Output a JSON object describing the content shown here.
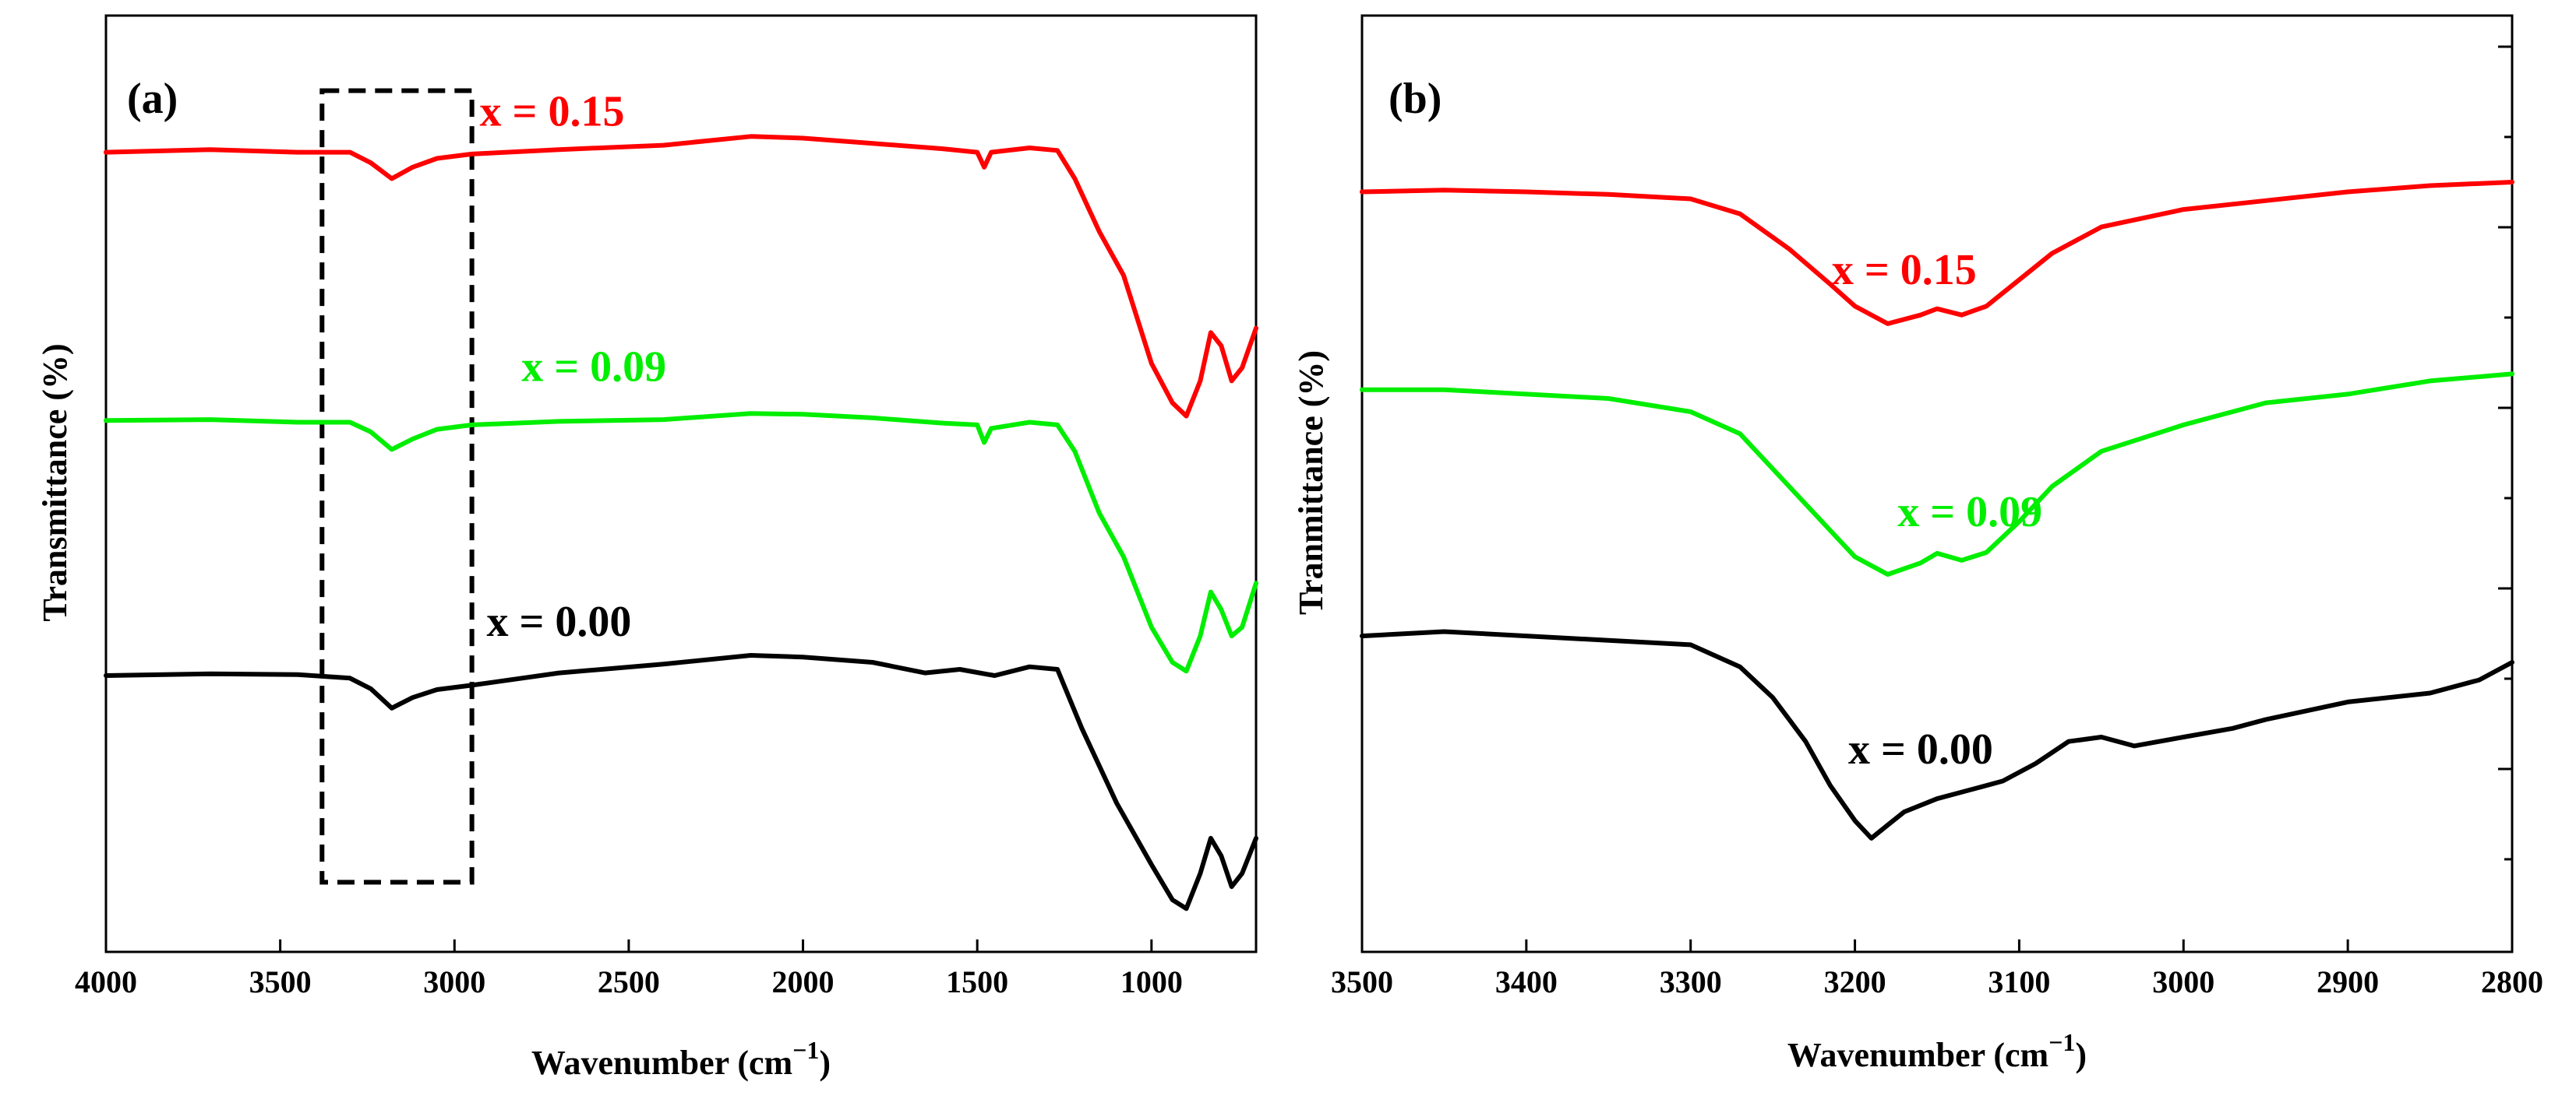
{
  "chart_data": [
    {
      "panel": "(a)",
      "type": "line",
      "xlabel": "Wavenumber (cm",
      "xlabel_sup": "−1",
      "xlabel_close": ")",
      "ylabel": "Transmittance (%)",
      "xlim": [
        4000,
        700
      ],
      "ylim": [
        0,
        100
      ],
      "xticks": [
        4000,
        3500,
        3000,
        2500,
        2000,
        1500,
        1000
      ],
      "annotation_box": {
        "x_range": [
          3380,
          2950
        ],
        "y_range": [
          5,
          95
        ],
        "style": "dashed"
      },
      "series": [
        {
          "name": "x = 0.15",
          "color": "#ff0000",
          "label_at": [
            2720,
            91
          ],
          "points": [
            [
              4000,
              88
            ],
            [
              3700,
              88.3
            ],
            [
              3450,
              88
            ],
            [
              3300,
              88
            ],
            [
              3240,
              86.8
            ],
            [
              3180,
              85
            ],
            [
              3120,
              86.3
            ],
            [
              3050,
              87.3
            ],
            [
              2950,
              87.8
            ],
            [
              2700,
              88.3
            ],
            [
              2400,
              88.8
            ],
            [
              2150,
              89.8
            ],
            [
              2000,
              89.6
            ],
            [
              1800,
              89
            ],
            [
              1600,
              88.4
            ],
            [
              1500,
              88
            ],
            [
              1480,
              86.3
            ],
            [
              1460,
              88
            ],
            [
              1350,
              88.5
            ],
            [
              1270,
              88.2
            ],
            [
              1220,
              85
            ],
            [
              1150,
              79
            ],
            [
              1080,
              74
            ],
            [
              1000,
              64
            ],
            [
              940,
              59.5
            ],
            [
              900,
              58
            ],
            [
              860,
              62
            ],
            [
              830,
              67.5
            ],
            [
              800,
              66
            ],
            [
              770,
              62
            ],
            [
              740,
              63.5
            ],
            [
              700,
              68
            ]
          ]
        },
        {
          "name": "x = 0.09",
          "color": "#00ee00",
          "label_at": [
            2600,
            62
          ],
          "points": [
            [
              4000,
              57.5
            ],
            [
              3700,
              57.6
            ],
            [
              3450,
              57.3
            ],
            [
              3300,
              57.3
            ],
            [
              3240,
              56.2
            ],
            [
              3180,
              54.2
            ],
            [
              3120,
              55.4
            ],
            [
              3050,
              56.5
            ],
            [
              2950,
              57
            ],
            [
              2700,
              57.4
            ],
            [
              2400,
              57.6
            ],
            [
              2150,
              58.3
            ],
            [
              2000,
              58.2
            ],
            [
              1800,
              57.8
            ],
            [
              1600,
              57.2
            ],
            [
              1500,
              57
            ],
            [
              1480,
              55
            ],
            [
              1460,
              56.6
            ],
            [
              1350,
              57.3
            ],
            [
              1270,
              57
            ],
            [
              1220,
              54
            ],
            [
              1150,
              47
            ],
            [
              1080,
              42
            ],
            [
              1000,
              34
            ],
            [
              940,
              30
            ],
            [
              900,
              29
            ],
            [
              860,
              33
            ],
            [
              830,
              38
            ],
            [
              800,
              36
            ],
            [
              770,
              33
            ],
            [
              740,
              34
            ],
            [
              700,
              39
            ]
          ]
        },
        {
          "name": "x = 0.00",
          "color": "#000000",
          "label_at": [
            2700,
            33
          ],
          "points": [
            [
              4000,
              28.5
            ],
            [
              3700,
              28.7
            ],
            [
              3450,
              28.6
            ],
            [
              3300,
              28.2
            ],
            [
              3240,
              27
            ],
            [
              3180,
              24.8
            ],
            [
              3120,
              26
            ],
            [
              3050,
              26.9
            ],
            [
              2950,
              27.4
            ],
            [
              2700,
              28.8
            ],
            [
              2400,
              29.8
            ],
            [
              2150,
              30.8
            ],
            [
              2000,
              30.6
            ],
            [
              1800,
              30
            ],
            [
              1650,
              28.8
            ],
            [
              1550,
              29.2
            ],
            [
              1450,
              28.5
            ],
            [
              1350,
              29.5
            ],
            [
              1270,
              29.2
            ],
            [
              1200,
              22.5
            ],
            [
              1100,
              14
            ],
            [
              1000,
              7
            ],
            [
              940,
              3
            ],
            [
              900,
              2
            ],
            [
              860,
              6
            ],
            [
              830,
              10
            ],
            [
              800,
              8
            ],
            [
              770,
              4.5
            ],
            [
              740,
              6
            ],
            [
              700,
              10
            ]
          ]
        }
      ]
    },
    {
      "panel": "(b)",
      "type": "line",
      "xlabel": "Wavenumber (cm",
      "xlabel_sup": "−1",
      "xlabel_close": ")",
      "ylabel": "Tranmittance (%)",
      "xlim": [
        3500,
        2800
      ],
      "ylim": [
        0,
        100
      ],
      "xticks": [
        3500,
        3400,
        3300,
        3200,
        3100,
        3000,
        2900,
        2800
      ],
      "series": [
        {
          "name": "x = 0.15",
          "color": "#ff0000",
          "label_at": [
            3170,
            73
          ],
          "points": [
            [
              3500,
              83.5
            ],
            [
              3450,
              83.7
            ],
            [
              3400,
              83.5
            ],
            [
              3350,
              83.2
            ],
            [
              3300,
              82.7
            ],
            [
              3270,
              81
            ],
            [
              3240,
              77
            ],
            [
              3215,
              73
            ],
            [
              3200,
              70.5
            ],
            [
              3180,
              68.5
            ],
            [
              3160,
              69.5
            ],
            [
              3150,
              70.2
            ],
            [
              3135,
              69.5
            ],
            [
              3120,
              70.5
            ],
            [
              3100,
              73.5
            ],
            [
              3080,
              76.5
            ],
            [
              3050,
              79.5
            ],
            [
              3000,
              81.5
            ],
            [
              2950,
              82.5
            ],
            [
              2900,
              83.5
            ],
            [
              2850,
              84.2
            ],
            [
              2800,
              84.6
            ]
          ]
        },
        {
          "name": "x = 0.09",
          "color": "#00ee00",
          "label_at": [
            3130,
            45.5
          ],
          "points": [
            [
              3500,
              61
            ],
            [
              3450,
              61
            ],
            [
              3400,
              60.5
            ],
            [
              3350,
              60
            ],
            [
              3300,
              58.5
            ],
            [
              3270,
              56
            ],
            [
              3240,
              50
            ],
            [
              3215,
              45
            ],
            [
              3200,
              42
            ],
            [
              3180,
              40
            ],
            [
              3160,
              41.3
            ],
            [
              3150,
              42.4
            ],
            [
              3135,
              41.6
            ],
            [
              3120,
              42.5
            ],
            [
              3100,
              46
            ],
            [
              3080,
              50
            ],
            [
              3050,
              54
            ],
            [
              3000,
              57
            ],
            [
              2950,
              59.5
            ],
            [
              2900,
              60.5
            ],
            [
              2850,
              62
            ],
            [
              2800,
              62.8
            ]
          ]
        },
        {
          "name": "x = 0.00",
          "color": "#000000",
          "label_at": [
            3160,
            18.5
          ],
          "points": [
            [
              3500,
              33
            ],
            [
              3450,
              33.5
            ],
            [
              3400,
              33
            ],
            [
              3350,
              32.5
            ],
            [
              3300,
              32
            ],
            [
              3270,
              29.5
            ],
            [
              3250,
              26
            ],
            [
              3230,
              21
            ],
            [
              3215,
              16
            ],
            [
              3200,
              12
            ],
            [
              3190,
              10
            ],
            [
              3180,
              11.5
            ],
            [
              3170,
              13
            ],
            [
              3150,
              14.5
            ],
            [
              3130,
              15.5
            ],
            [
              3110,
              16.5
            ],
            [
              3090,
              18.5
            ],
            [
              3070,
              21
            ],
            [
              3050,
              21.5
            ],
            [
              3030,
              20.5
            ],
            [
              3000,
              21.5
            ],
            [
              2970,
              22.5
            ],
            [
              2950,
              23.5
            ],
            [
              2900,
              25.5
            ],
            [
              2850,
              26.5
            ],
            [
              2820,
              28
            ],
            [
              2800,
              30
            ]
          ]
        }
      ]
    }
  ]
}
